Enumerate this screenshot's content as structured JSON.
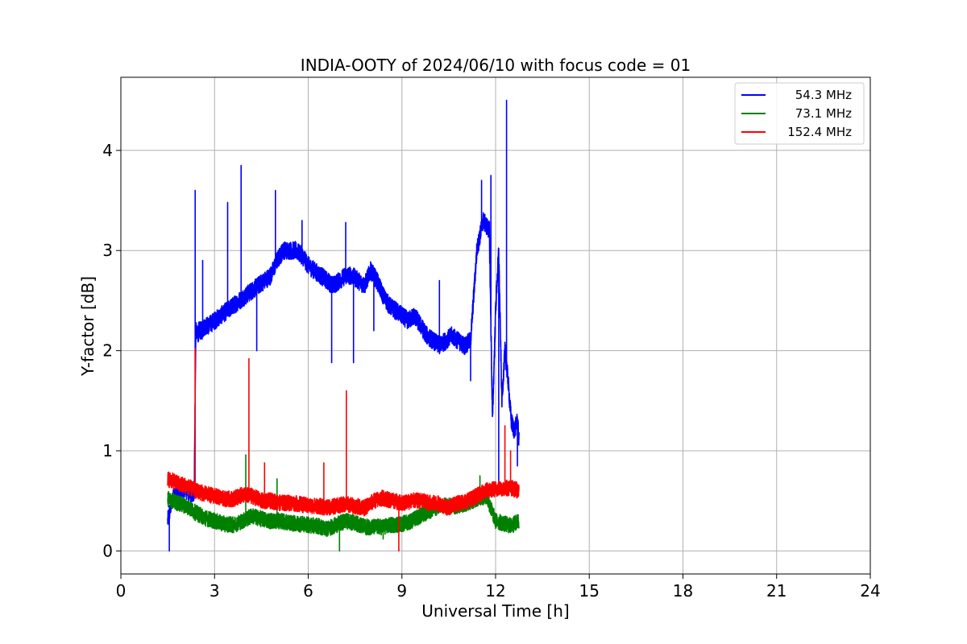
{
  "chart_data": {
    "type": "line",
    "title": "INDIA-OOTY of 2024/06/10 with focus code = 01",
    "xlabel": "Universal Time [h]",
    "ylabel": "Y-factor [dB]",
    "xlim": [
      0,
      24
    ],
    "ylim": [
      -0.23,
      4.73
    ],
    "xticks": [
      0,
      3,
      6,
      9,
      12,
      15,
      18,
      21,
      24
    ],
    "yticks": [
      0,
      1,
      2,
      3,
      4
    ],
    "xtick_labels": [
      "0",
      "3",
      "6",
      "9",
      "12",
      "15",
      "18",
      "21",
      "24"
    ],
    "ytick_labels": [
      "0",
      "1",
      "2",
      "3",
      "4"
    ],
    "grid": true,
    "legend_position": "top-right",
    "series": [
      {
        "name": "54.3 MHz",
        "color": "#0000ff",
        "x": [
          1.5,
          1.6,
          1.7,
          1.8,
          1.9,
          2.0,
          2.1,
          2.2,
          2.3,
          2.35,
          2.4,
          2.45,
          2.5,
          2.6,
          2.7,
          2.8,
          3.0,
          3.2,
          3.4,
          3.6,
          3.8,
          4.0,
          4.2,
          4.4,
          4.6,
          4.8,
          5.0,
          5.2,
          5.4,
          5.6,
          5.8,
          6.0,
          6.2,
          6.4,
          6.6,
          6.8,
          7.0,
          7.2,
          7.4,
          7.6,
          7.8,
          8.0,
          8.2,
          8.4,
          8.6,
          8.8,
          9.0,
          9.2,
          9.4,
          9.6,
          9.8,
          10.0,
          10.2,
          10.4,
          10.6,
          10.8,
          11.0,
          11.2,
          11.4,
          11.6,
          11.8,
          11.9,
          12.0,
          12.1,
          12.2,
          12.3,
          12.4,
          12.5,
          12.6,
          12.7,
          12.75
        ],
        "y": [
          0.3,
          0.45,
          0.55,
          0.6,
          0.6,
          0.62,
          0.6,
          0.58,
          0.55,
          0.6,
          2.2,
          2.15,
          2.2,
          2.2,
          2.25,
          2.25,
          2.3,
          2.35,
          2.4,
          2.45,
          2.5,
          2.55,
          2.6,
          2.65,
          2.7,
          2.75,
          2.9,
          3.0,
          3.0,
          3.0,
          2.95,
          2.85,
          2.8,
          2.75,
          2.7,
          2.65,
          2.7,
          2.75,
          2.75,
          2.7,
          2.65,
          2.8,
          2.7,
          2.55,
          2.45,
          2.4,
          2.35,
          2.3,
          2.35,
          2.25,
          2.15,
          2.1,
          2.05,
          2.1,
          2.15,
          2.1,
          2.05,
          2.1,
          3.0,
          3.3,
          3.2,
          1.3,
          2.4,
          3.0,
          1.5,
          2.0,
          1.7,
          1.3,
          1.2,
          1.3,
          1.1
        ],
        "spikes": [
          {
            "x": 2.38,
            "y": 3.6
          },
          {
            "x": 2.62,
            "y": 2.9
          },
          {
            "x": 3.42,
            "y": 3.48
          },
          {
            "x": 3.85,
            "y": 3.85
          },
          {
            "x": 4.95,
            "y": 3.6
          },
          {
            "x": 5.8,
            "y": 3.3
          },
          {
            "x": 7.2,
            "y": 3.28
          },
          {
            "x": 10.2,
            "y": 2.7
          },
          {
            "x": 11.55,
            "y": 3.7
          },
          {
            "x": 11.85,
            "y": 3.75
          },
          {
            "x": 12.35,
            "y": 4.5
          }
        ],
        "dips": [
          {
            "x": 1.55,
            "y": 0.0
          },
          {
            "x": 4.35,
            "y": 2.0
          },
          {
            "x": 6.75,
            "y": 1.88
          },
          {
            "x": 7.45,
            "y": 1.88
          },
          {
            "x": 8.1,
            "y": 2.2
          },
          {
            "x": 11.2,
            "y": 1.7
          },
          {
            "x": 12.1,
            "y": 0.7
          },
          {
            "x": 12.7,
            "y": 0.85
          }
        ]
      },
      {
        "name": "73.1 MHz",
        "color": "#008000",
        "x": [
          1.5,
          1.8,
          2.1,
          2.4,
          2.7,
          3.0,
          3.3,
          3.6,
          3.9,
          4.2,
          4.5,
          4.8,
          5.1,
          5.4,
          5.7,
          6.0,
          6.3,
          6.6,
          6.9,
          7.2,
          7.5,
          7.8,
          8.1,
          8.4,
          8.7,
          9.0,
          9.3,
          9.6,
          9.9,
          10.2,
          10.5,
          10.8,
          11.1,
          11.4,
          11.7,
          12.0,
          12.3,
          12.5,
          12.75
        ],
        "y": [
          0.52,
          0.48,
          0.45,
          0.38,
          0.33,
          0.3,
          0.27,
          0.26,
          0.3,
          0.35,
          0.32,
          0.3,
          0.3,
          0.28,
          0.27,
          0.26,
          0.25,
          0.22,
          0.26,
          0.3,
          0.28,
          0.24,
          0.24,
          0.24,
          0.26,
          0.27,
          0.3,
          0.35,
          0.4,
          0.45,
          0.45,
          0.45,
          0.48,
          0.52,
          0.55,
          0.3,
          0.27,
          0.25,
          0.3
        ],
        "spikes": [
          {
            "x": 4.0,
            "y": 0.96
          },
          {
            "x": 5.0,
            "y": 0.72
          },
          {
            "x": 11.5,
            "y": 0.75
          }
        ],
        "dips": [
          {
            "x": 7.0,
            "y": 0.0
          },
          {
            "x": 8.4,
            "y": 0.12
          }
        ]
      },
      {
        "name": "152.4 MHz",
        "color": "#ff0000",
        "x": [
          1.5,
          1.8,
          2.1,
          2.4,
          2.7,
          3.0,
          3.3,
          3.6,
          3.9,
          4.2,
          4.5,
          4.8,
          5.1,
          5.4,
          5.7,
          6.0,
          6.3,
          6.6,
          6.9,
          7.2,
          7.5,
          7.8,
          8.1,
          8.4,
          8.7,
          9.0,
          9.3,
          9.6,
          9.9,
          10.2,
          10.5,
          10.8,
          11.1,
          11.4,
          11.7,
          12.0,
          12.3,
          12.5,
          12.75
        ],
        "y": [
          0.72,
          0.68,
          0.65,
          0.6,
          0.57,
          0.55,
          0.52,
          0.52,
          0.56,
          0.55,
          0.5,
          0.5,
          0.48,
          0.48,
          0.47,
          0.45,
          0.45,
          0.43,
          0.45,
          0.47,
          0.45,
          0.43,
          0.5,
          0.53,
          0.5,
          0.48,
          0.5,
          0.5,
          0.48,
          0.47,
          0.43,
          0.48,
          0.5,
          0.55,
          0.6,
          0.62,
          0.63,
          0.63,
          0.6
        ],
        "spikes": [
          {
            "x": 2.38,
            "y": 2.02
          },
          {
            "x": 4.1,
            "y": 1.92
          },
          {
            "x": 7.22,
            "y": 1.6
          },
          {
            "x": 4.6,
            "y": 0.88
          },
          {
            "x": 6.5,
            "y": 0.88
          },
          {
            "x": 12.3,
            "y": 1.25
          },
          {
            "x": 12.48,
            "y": 1.0
          }
        ],
        "dips": [
          {
            "x": 8.9,
            "y": 0.0
          }
        ]
      }
    ]
  }
}
